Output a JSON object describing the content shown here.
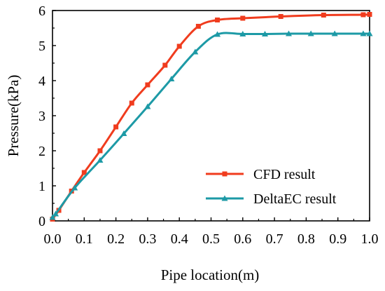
{
  "chart_data": {
    "type": "line",
    "xlabel": "Pipe location(m)",
    "ylabel": "Pressure(kPa)",
    "xlim": [
      0,
      1.0
    ],
    "ylim": [
      0,
      6
    ],
    "xticks": [
      "0.0",
      "0.1",
      "0.2",
      "0.3",
      "0.4",
      "0.5",
      "0.6",
      "0.7",
      "0.8",
      "0.9",
      "1.0"
    ],
    "yticks": [
      "0",
      "1",
      "2",
      "3",
      "4",
      "5",
      "6"
    ],
    "grid": false,
    "legend_position": "bottom-right",
    "series": [
      {
        "name": "CFD result",
        "color": "#f03c1e",
        "marker": "square",
        "x": [
          0.0,
          0.02,
          0.06,
          0.1,
          0.15,
          0.2,
          0.25,
          0.3,
          0.355,
          0.4,
          0.46,
          0.52,
          0.6,
          0.72,
          0.855,
          0.98,
          1.0
        ],
        "y": [
          0.05,
          0.3,
          0.85,
          1.38,
          2.0,
          2.68,
          3.36,
          3.88,
          4.44,
          4.98,
          5.55,
          5.73,
          5.78,
          5.83,
          5.87,
          5.88,
          5.89
        ]
      },
      {
        "name": "DeltaEC result",
        "color": "#1d9aa6",
        "marker": "triangle",
        "x": [
          0.0,
          0.01,
          0.07,
          0.15,
          0.225,
          0.3,
          0.375,
          0.45,
          0.52,
          0.6,
          0.67,
          0.745,
          0.815,
          0.89,
          0.98,
          1.0
        ],
        "y": [
          0.1,
          0.2,
          0.94,
          1.73,
          2.49,
          3.26,
          4.05,
          4.82,
          5.32,
          5.33,
          5.33,
          5.34,
          5.34,
          5.34,
          5.34,
          5.34
        ]
      }
    ]
  }
}
